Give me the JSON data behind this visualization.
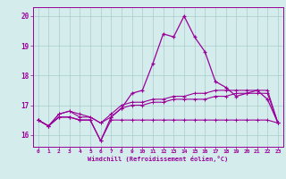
{
  "xlabel": "Windchill (Refroidissement éolien,°C)",
  "bg_color": "#d4ecec",
  "grid_color": "#aacccc",
  "line_color": "#990099",
  "xlim": [
    -0.5,
    23.5
  ],
  "ylim": [
    15.6,
    20.3
  ],
  "yticks": [
    16,
    17,
    18,
    19,
    20
  ],
  "xticks": [
    0,
    1,
    2,
    3,
    4,
    5,
    6,
    7,
    8,
    9,
    10,
    11,
    12,
    13,
    14,
    15,
    16,
    17,
    18,
    19,
    20,
    21,
    22,
    23
  ],
  "series": {
    "line1": [
      16.5,
      16.3,
      16.6,
      16.6,
      16.5,
      16.5,
      15.8,
      16.6,
      16.9,
      17.4,
      17.5,
      18.4,
      19.4,
      19.3,
      20.0,
      19.3,
      18.8,
      17.8,
      17.6,
      17.3,
      17.4,
      17.5,
      17.2,
      16.4
    ],
    "line2": [
      16.5,
      16.3,
      16.7,
      16.8,
      16.7,
      16.6,
      16.4,
      16.7,
      17.0,
      17.1,
      17.1,
      17.2,
      17.2,
      17.3,
      17.3,
      17.4,
      17.4,
      17.5,
      17.5,
      17.5,
      17.5,
      17.5,
      17.5,
      16.4
    ],
    "line3": [
      16.5,
      16.3,
      16.7,
      16.8,
      16.6,
      16.6,
      16.4,
      16.6,
      16.9,
      17.0,
      17.0,
      17.1,
      17.1,
      17.2,
      17.2,
      17.2,
      17.2,
      17.3,
      17.3,
      17.4,
      17.4,
      17.4,
      17.4,
      16.4
    ],
    "line4": [
      16.5,
      16.3,
      16.6,
      16.6,
      16.5,
      16.5,
      15.8,
      16.5,
      16.5,
      16.5,
      16.5,
      16.5,
      16.5,
      16.5,
      16.5,
      16.5,
      16.5,
      16.5,
      16.5,
      16.5,
      16.5,
      16.5,
      16.5,
      16.4
    ]
  }
}
